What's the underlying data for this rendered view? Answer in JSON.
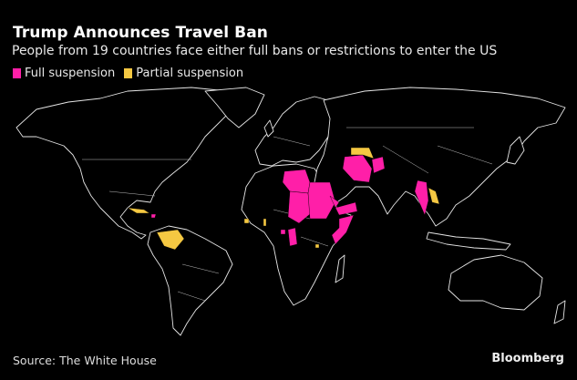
{
  "header": {
    "title": "Trump Announces Travel Ban",
    "subtitle": "People from 19 countries face either full bans or restrictions to enter the US"
  },
  "legend": [
    {
      "label": "Full suspension",
      "color": "#ff1fa8"
    },
    {
      "label": "Partial suspension",
      "color": "#f5c842"
    }
  ],
  "colors": {
    "background": "#000000",
    "land_outline": "#e6e6e6"
  },
  "footer": {
    "source": "Source: The White House",
    "brand": "Bloomberg"
  }
}
